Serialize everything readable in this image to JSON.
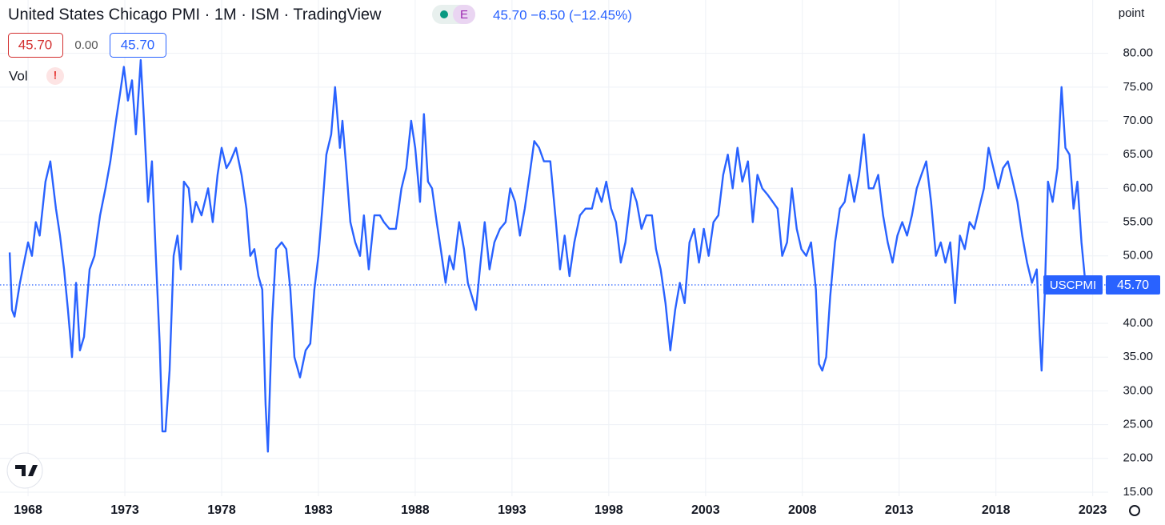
{
  "chart_data": {
    "type": "line",
    "title": "United States Chicago PMI · 1M · ISM · TradingView",
    "change": "45.70  −6.50 (−12.45%)",
    "badge": "E",
    "unit": "point",
    "legend_values": [
      "45.70",
      "0.00",
      "45.70"
    ],
    "vol": "Vol",
    "alert": "!",
    "symbol": "USCPMI",
    "price_label": "45.70",
    "grid": true,
    "xlim": [
      1966.55,
      2023.8
    ],
    "ylim": [
      14.4,
      87.9
    ],
    "xticks": [
      1968,
      1973,
      1978,
      1983,
      1988,
      1993,
      1998,
      2003,
      2008,
      2013,
      2018,
      2023
    ],
    "yticks": [
      {
        "value": 15,
        "label": "15.00"
      },
      {
        "value": 20,
        "label": "20.00"
      },
      {
        "value": 25,
        "label": "25.00"
      },
      {
        "value": 30,
        "label": "30.00"
      },
      {
        "value": 35,
        "label": "35.00"
      },
      {
        "value": 40,
        "label": "40.00"
      },
      {
        "value": 45,
        "label": "45.00"
      },
      {
        "value": 50,
        "label": "50.00"
      },
      {
        "value": 55,
        "label": "55.00"
      },
      {
        "value": 60,
        "label": "60.00"
      },
      {
        "value": 65,
        "label": "65.00"
      },
      {
        "value": 70,
        "label": "70.00"
      },
      {
        "value": 75,
        "label": "75.00"
      },
      {
        "value": 80,
        "label": "80.00"
      }
    ],
    "x": [
      1967.05,
      1967.17,
      1967.3,
      1967.58,
      1968.0,
      1968.2,
      1968.4,
      1968.6,
      1968.9,
      1969.15,
      1969.44,
      1969.65,
      1969.86,
      1970.06,
      1970.27,
      1970.48,
      1970.68,
      1970.89,
      1971.18,
      1971.43,
      1971.72,
      1972.0,
      1972.25,
      1972.54,
      1972.75,
      1972.95,
      1973.16,
      1973.37,
      1973.57,
      1973.82,
      1973.99,
      1974.2,
      1974.4,
      1974.6,
      1974.8,
      1974.94,
      1975.1,
      1975.31,
      1975.52,
      1975.72,
      1975.89,
      1976.05,
      1976.3,
      1976.47,
      1976.67,
      1976.96,
      1977.3,
      1977.54,
      1977.79,
      1978.0,
      1978.25,
      1978.45,
      1978.74,
      1979.03,
      1979.28,
      1979.48,
      1979.69,
      1979.9,
      1980.1,
      1980.27,
      1980.39,
      1980.6,
      1980.81,
      1981.1,
      1981.34,
      1981.55,
      1981.76,
      1982.05,
      1982.34,
      1982.58,
      1982.79,
      1983.0,
      1983.2,
      1983.41,
      1983.66,
      1983.86,
      1984.11,
      1984.24,
      1984.44,
      1984.65,
      1984.9,
      1985.15,
      1985.35,
      1985.6,
      1985.89,
      1986.18,
      1986.38,
      1986.67,
      1987.0,
      1987.29,
      1987.54,
      1987.79,
      1988.0,
      1988.25,
      1988.45,
      1988.66,
      1988.87,
      1989.11,
      1989.32,
      1989.57,
      1989.77,
      1989.98,
      1990.27,
      1990.52,
      1990.72,
      1990.93,
      1991.14,
      1991.34,
      1991.59,
      1991.84,
      1992.09,
      1992.38,
      1992.67,
      1992.91,
      1993.16,
      1993.41,
      1993.66,
      1993.91,
      1994.15,
      1994.4,
      1994.65,
      1994.98,
      1995.27,
      1995.48,
      1995.72,
      1995.97,
      1996.22,
      1996.51,
      1996.8,
      1997.13,
      1997.38,
      1997.63,
      1997.87,
      1998.12,
      1998.37,
      1998.62,
      1998.86,
      1999.2,
      1999.44,
      1999.69,
      1999.94,
      2000.23,
      2000.44,
      2000.68,
      2000.93,
      2001.18,
      2001.43,
      2001.67,
      2001.92,
      2002.17,
      2002.41,
      2002.66,
      2002.91,
      2003.16,
      2003.41,
      2003.66,
      2003.91,
      2004.15,
      2004.4,
      2004.65,
      2004.9,
      2005.19,
      2005.44,
      2005.68,
      2005.93,
      2006.22,
      2006.47,
      2006.72,
      2006.96,
      2007.21,
      2007.46,
      2007.71,
      2007.95,
      2008.2,
      2008.45,
      2008.7,
      2008.86,
      2009.03,
      2009.23,
      2009.44,
      2009.69,
      2009.94,
      2010.19,
      2010.43,
      2010.68,
      2010.93,
      2011.18,
      2011.43,
      2011.67,
      2011.92,
      2012.17,
      2012.41,
      2012.66,
      2012.91,
      2013.16,
      2013.41,
      2013.66,
      2013.91,
      2014.15,
      2014.4,
      2014.65,
      2014.9,
      2015.15,
      2015.39,
      2015.64,
      2015.89,
      2016.14,
      2016.39,
      2016.64,
      2016.88,
      2017.13,
      2017.38,
      2017.62,
      2017.87,
      2018.12,
      2018.37,
      2018.62,
      2018.87,
      2019.11,
      2019.36,
      2019.61,
      2019.86,
      2020.11,
      2020.27,
      2020.36,
      2020.52,
      2020.69,
      2020.93,
      2021.18,
      2021.39,
      2021.59,
      2021.8,
      2022.01,
      2022.21,
      2022.42,
      2022.63
    ],
    "series": [
      {
        "name": "USCPMI",
        "color": "#2962ff",
        "values": [
          50.5,
          42,
          41,
          46,
          52,
          50,
          55,
          53,
          61,
          64,
          57,
          53,
          48,
          42,
          35,
          46,
          36,
          38,
          48,
          50,
          56,
          60,
          64,
          70,
          74,
          78,
          73,
          76,
          68,
          79,
          70,
          58,
          64,
          50,
          37,
          24,
          24,
          33,
          50,
          53,
          48,
          61,
          60,
          55,
          58,
          56,
          60,
          55,
          62,
          66,
          63,
          64,
          66,
          62,
          57,
          50,
          51,
          47,
          45,
          28,
          21,
          40,
          51,
          52,
          51,
          45,
          35,
          32,
          36,
          37,
          45,
          50,
          57,
          65,
          68,
          75,
          66,
          70,
          63,
          55,
          52,
          50,
          56,
          48,
          56,
          56,
          55,
          54,
          54,
          60,
          63,
          70,
          66,
          58,
          71,
          61,
          60,
          55,
          51,
          46,
          50,
          48,
          55,
          51,
          46,
          44,
          42,
          48,
          55,
          48,
          52,
          54,
          55,
          60,
          58,
          53,
          57,
          62,
          67,
          66,
          64,
          64,
          55,
          48,
          53,
          47,
          52,
          56,
          57,
          57,
          60,
          58,
          61,
          57,
          55,
          49,
          52,
          60,
          58,
          54,
          56,
          56,
          51,
          48,
          43,
          36,
          42,
          46,
          43,
          52,
          54,
          49,
          54,
          50,
          55,
          56,
          62,
          65,
          60,
          66,
          61,
          64,
          55,
          62,
          60,
          59,
          58,
          57,
          50,
          52,
          60,
          54,
          51,
          50,
          52,
          45,
          34,
          33,
          35,
          44,
          52,
          57,
          58,
          62,
          58,
          62,
          68,
          60,
          60,
          62,
          56,
          52,
          49,
          53,
          55,
          53,
          56,
          60,
          62,
          64,
          58,
          50,
          52,
          49,
          52,
          43,
          53,
          51,
          55,
          54,
          57,
          60,
          66,
          63,
          60,
          63,
          64,
          61,
          58,
          53,
          49,
          46,
          48,
          38,
          33,
          44,
          61,
          58,
          63,
          75,
          66,
          65,
          57,
          61,
          52,
          45.7
        ]
      }
    ]
  }
}
